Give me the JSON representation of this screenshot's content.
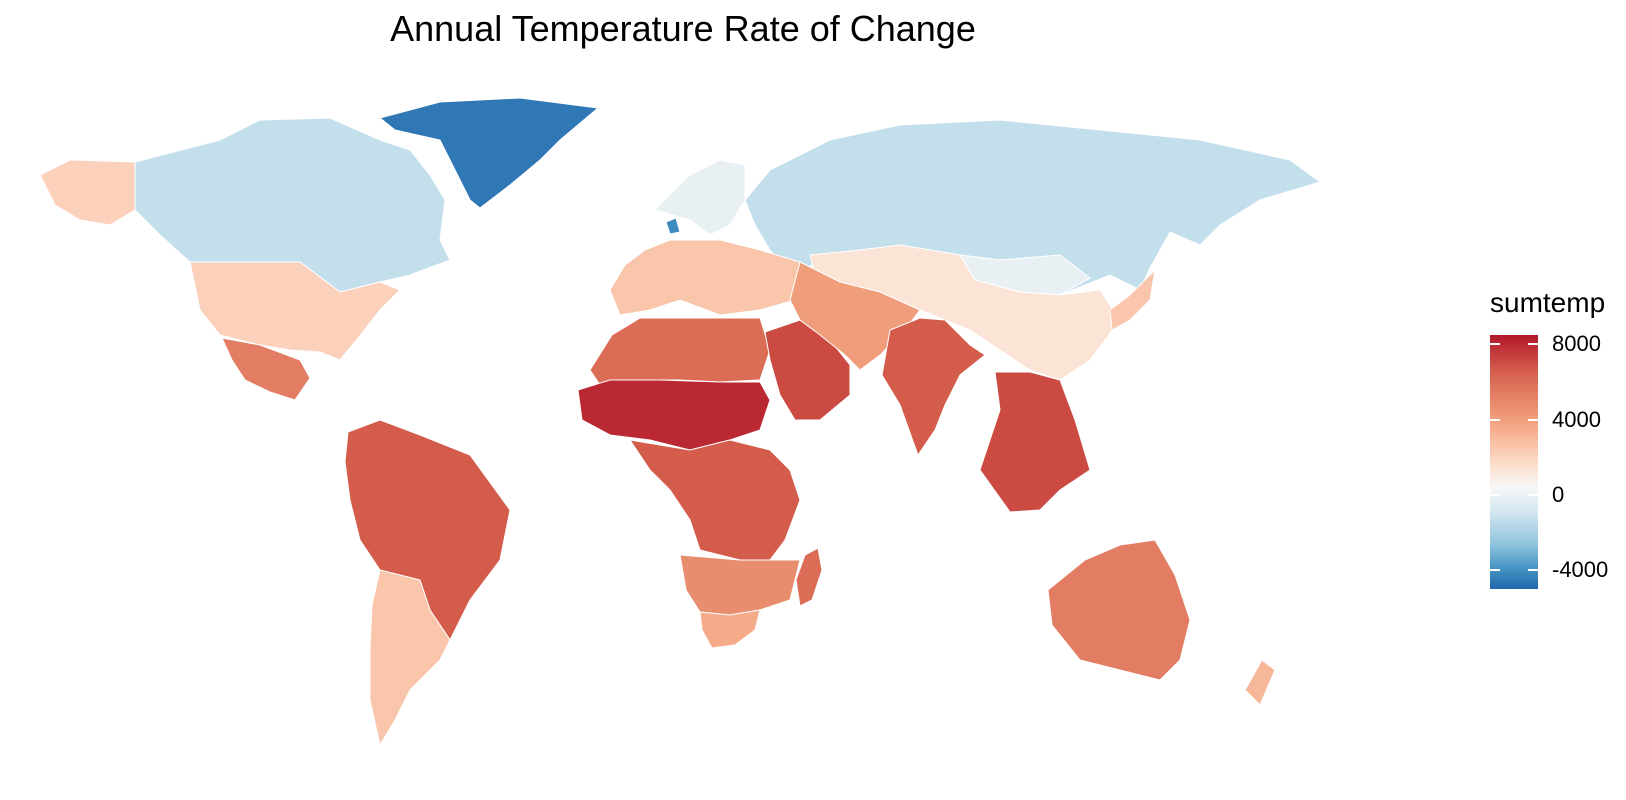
{
  "chart_data": {
    "type": "choropleth-map",
    "title": "Annual Temperature Rate of Change",
    "legend": {
      "title": "sumtemp",
      "placement": "right",
      "ticks": [
        8000,
        4000,
        0,
        -4000
      ],
      "tick_labels": [
        "8000",
        "4000",
        "0",
        "-4000"
      ],
      "range": [
        -5000,
        8500
      ],
      "colors": [
        "#2166ac",
        "#4393c3",
        "#92c5de",
        "#d1e5f0",
        "#f7f7f7",
        "#fddbc7",
        "#f4a582",
        "#d6604d",
        "#b2182b"
      ]
    },
    "regions": [
      {
        "name": "Greenland",
        "value": -4500
      },
      {
        "name": "Denmark",
        "value": -4000
      },
      {
        "name": "Canada",
        "value": -1500
      },
      {
        "name": "Russia",
        "value": -1500
      },
      {
        "name": "Scandinavia",
        "value": -500
      },
      {
        "name": "Mongolia",
        "value": -500
      },
      {
        "name": "Alaska",
        "value": 2500
      },
      {
        "name": "United States",
        "value": 2500
      },
      {
        "name": "China",
        "value": 1500
      },
      {
        "name": "Europe",
        "value": 3000
      },
      {
        "name": "Mexico",
        "value": 5500
      },
      {
        "name": "South America north",
        "value": 6500
      },
      {
        "name": "South America south",
        "value": 3000
      },
      {
        "name": "North Africa",
        "value": 6000
      },
      {
        "name": "Sahel",
        "value": 8000
      },
      {
        "name": "Central Africa",
        "value": 6500
      },
      {
        "name": "Southern Africa",
        "value": 5000
      },
      {
        "name": "South Africa",
        "value": 4000
      },
      {
        "name": "Arabia",
        "value": 7000
      },
      {
        "name": "Iran Central Asia",
        "value": 4500
      },
      {
        "name": "India",
        "value": 6500
      },
      {
        "name": "Southeast Asia",
        "value": 7000
      },
      {
        "name": "Australia",
        "value": 5500
      },
      {
        "name": "New Zealand",
        "value": 3500
      },
      {
        "name": "Japan",
        "value": 3000
      },
      {
        "name": "Madagascar",
        "value": 6000
      }
    ]
  }
}
